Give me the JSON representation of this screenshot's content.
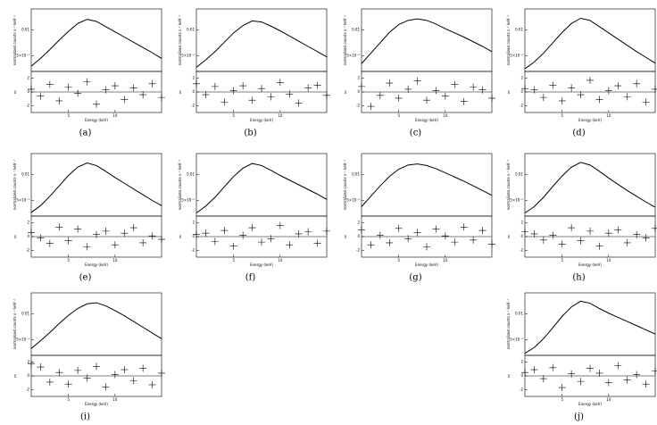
{
  "chart_data": [
    {
      "type": "line",
      "caption": "(a)",
      "xlabel": "Energy (keV)",
      "ylabel": "normalized counts s⁻¹ keV⁻¹",
      "y2label": "χ",
      "x": [
        1,
        2,
        3,
        4,
        5,
        6,
        7,
        8,
        9,
        10,
        11,
        12,
        13,
        14,
        15
      ],
      "xlim": [
        1,
        15
      ],
      "xticks": [
        5,
        10
      ],
      "ylim": [
        0.002,
        0.014
      ],
      "yticks": [
        {
          "value": 0.005,
          "label": "5×10⁻³"
        },
        0.01
      ],
      "y2lim": [
        -3,
        3
      ],
      "y2ticks": [
        -2,
        0,
        2
      ],
      "series": [
        {
          "name": "model",
          "color": "#000",
          "values": [
            0.003,
            0.0045,
            0.0062,
            0.008,
            0.0097,
            0.0112,
            0.012,
            0.0116,
            0.0106,
            0.0096,
            0.0086,
            0.0076,
            0.0066,
            0.0056,
            0.0045
          ]
        },
        {
          "name": "residuals",
          "color": "#000",
          "axis": "y2",
          "values": [
            0.4,
            -0.6,
            1.1,
            -1.3,
            0.7,
            -0.2,
            1.5,
            -1.8,
            0.3,
            0.9,
            -1.1,
            0.6,
            -0.4,
            1.2,
            -0.8
          ]
        }
      ]
    },
    {
      "type": "line",
      "caption": "(b)",
      "xlabel": "Energy (keV)",
      "ylabel": "normalized counts s⁻¹ keV⁻¹",
      "y2label": "χ",
      "x": [
        1,
        2,
        3,
        4,
        5,
        6,
        7,
        8,
        9,
        10,
        11,
        12,
        13,
        14,
        15
      ],
      "xlim": [
        1,
        15
      ],
      "xticks": [
        5,
        10
      ],
      "ylim": [
        0.002,
        0.014
      ],
      "yticks": [
        {
          "value": 0.005,
          "label": "5×10⁻³"
        },
        0.01
      ],
      "y2lim": [
        -3,
        3
      ],
      "y2ticks": [
        -2,
        0,
        2
      ],
      "series": [
        {
          "name": "model",
          "color": "#000",
          "values": [
            0.0028,
            0.0042,
            0.0058,
            0.0076,
            0.0094,
            0.0108,
            0.0117,
            0.0115,
            0.0107,
            0.0098,
            0.0088,
            0.0078,
            0.0068,
            0.0058,
            0.0048
          ]
        },
        {
          "name": "residuals",
          "color": "#000",
          "axis": "y2",
          "values": [
            1.2,
            -0.4,
            0.8,
            -1.5,
            0.2,
            0.9,
            -1.2,
            0.5,
            -0.7,
            1.4,
            -0.3,
            -1.6,
            0.6,
            1.0,
            -0.5
          ]
        }
      ]
    },
    {
      "type": "line",
      "caption": "(c)",
      "xlabel": "Energy (keV)",
      "ylabel": "normalized counts s⁻¹ keV⁻¹",
      "y2label": "χ",
      "x": [
        1,
        2,
        3,
        4,
        5,
        6,
        7,
        8,
        9,
        10,
        11,
        12,
        13,
        14,
        15
      ],
      "xlim": [
        1,
        15
      ],
      "xticks": [
        5,
        10
      ],
      "ylim": [
        0.002,
        0.014
      ],
      "yticks": [
        {
          "value": 0.005,
          "label": "5×10⁻³"
        },
        0.01
      ],
      "y2lim": [
        -3,
        3
      ],
      "y2ticks": [
        -2,
        0,
        2
      ],
      "series": [
        {
          "name": "model",
          "color": "#000",
          "values": [
            0.0035,
            0.0055,
            0.0075,
            0.0095,
            0.011,
            0.0118,
            0.0121,
            0.0118,
            0.0111,
            0.0102,
            0.0094,
            0.0086,
            0.0077,
            0.0068,
            0.0058
          ]
        },
        {
          "name": "residuals",
          "color": "#000",
          "axis": "y2",
          "values": [
            0.8,
            -2.1,
            -0.5,
            1.3,
            -0.9,
            0.4,
            1.6,
            -1.2,
            0.2,
            -0.6,
            1.1,
            -1.4,
            0.7,
            0.3,
            -0.9
          ]
        }
      ]
    },
    {
      "type": "line",
      "caption": "(d)",
      "xlabel": "Energy (keV)",
      "ylabel": "normalized counts s⁻¹ keV⁻¹",
      "y2label": "χ",
      "x": [
        1,
        2,
        3,
        4,
        5,
        6,
        7,
        8,
        9,
        10,
        11,
        12,
        13,
        14,
        15
      ],
      "xlim": [
        1,
        15
      ],
      "xticks": [
        5,
        10
      ],
      "ylim": [
        0.002,
        0.014
      ],
      "yticks": [
        {
          "value": 0.005,
          "label": "5×10⁻³"
        },
        0.01
      ],
      "y2lim": [
        -3,
        3
      ],
      "y2ticks": [
        -2,
        0,
        2
      ],
      "series": [
        {
          "name": "model",
          "color": "#000",
          "values": [
            0.0025,
            0.0038,
            0.0055,
            0.0075,
            0.0095,
            0.0112,
            0.0122,
            0.0118,
            0.0106,
            0.0094,
            0.0082,
            0.007,
            0.0058,
            0.0047,
            0.0036
          ]
        },
        {
          "name": "residuals",
          "color": "#000",
          "axis": "y2",
          "values": [
            0.5,
            0.3,
            -0.8,
            1.0,
            -1.3,
            0.6,
            -0.4,
            1.7,
            -1.1,
            0.2,
            0.9,
            -0.7,
            1.2,
            -1.5,
            0.4
          ]
        }
      ]
    },
    {
      "type": "line",
      "caption": "(e)",
      "xlabel": "Energy (keV)",
      "ylabel": "normalized counts s⁻¹ keV⁻¹",
      "y2label": "χ",
      "x": [
        1,
        2,
        3,
        4,
        5,
        6,
        7,
        8,
        9,
        10,
        11,
        12,
        13,
        14,
        15
      ],
      "xlim": [
        1,
        15
      ],
      "xticks": [
        5,
        10
      ],
      "ylim": [
        0.002,
        0.014
      ],
      "yticks": [
        {
          "value": 0.005,
          "label": "5×10⁻³"
        },
        0.01
      ],
      "y2lim": [
        -3,
        3
      ],
      "y2ticks": [
        -2,
        0,
        2
      ],
      "series": [
        {
          "name": "model",
          "color": "#000",
          "values": [
            0.0027,
            0.004,
            0.0058,
            0.0078,
            0.0098,
            0.0114,
            0.0122,
            0.0117,
            0.0106,
            0.0094,
            0.0083,
            0.0072,
            0.0061,
            0.005,
            0.004
          ]
        },
        {
          "name": "residuals",
          "color": "#000",
          "axis": "y2",
          "values": [
            0.6,
            -0.2,
            -1.0,
            1.4,
            -0.6,
            1.1,
            -1.5,
            0.3,
            0.8,
            -1.2,
            0.5,
            1.3,
            -0.9,
            0.1,
            -0.4
          ]
        }
      ]
    },
    {
      "type": "line",
      "caption": "(f)",
      "xlabel": "Energy (keV)",
      "ylabel": "normalized counts s⁻¹ keV⁻¹",
      "y2label": "χ",
      "x": [
        1,
        2,
        3,
        4,
        5,
        6,
        7,
        8,
        9,
        10,
        11,
        12,
        13,
        14,
        15
      ],
      "xlim": [
        1,
        15
      ],
      "xticks": [
        5,
        10
      ],
      "ylim": [
        0.002,
        0.014
      ],
      "yticks": [
        {
          "value": 0.005,
          "label": "5×10⁻³"
        },
        0.01
      ],
      "y2lim": [
        -3,
        3
      ],
      "y2ticks": [
        -2,
        0,
        2
      ],
      "series": [
        {
          "name": "model",
          "color": "#000",
          "values": [
            0.0026,
            0.0039,
            0.0056,
            0.0076,
            0.0096,
            0.0112,
            0.0121,
            0.0117,
            0.0108,
            0.0098,
            0.0089,
            0.008,
            0.0071,
            0.0062,
            0.0052
          ]
        },
        {
          "name": "residuals",
          "color": "#000",
          "axis": "y2",
          "values": [
            0.3,
            0.5,
            -0.7,
            0.9,
            -1.4,
            0.2,
            1.3,
            -0.8,
            -0.3,
            1.6,
            -1.2,
            0.4,
            0.7,
            -1.0,
            0.8
          ]
        }
      ]
    },
    {
      "type": "line",
      "caption": "(g)",
      "xlabel": "Energy (keV)",
      "ylabel": "normalized counts s⁻¹ keV⁻¹",
      "y2label": "χ",
      "x": [
        1,
        2,
        3,
        4,
        5,
        6,
        7,
        8,
        9,
        10,
        11,
        12,
        13,
        14,
        15
      ],
      "xlim": [
        1,
        15
      ],
      "xticks": [
        5,
        10
      ],
      "ylim": [
        0.002,
        0.014
      ],
      "yticks": [
        {
          "value": 0.005,
          "label": "5×10⁻³"
        },
        0.01
      ],
      "y2lim": [
        -3,
        3
      ],
      "y2ticks": [
        -2,
        0,
        2
      ],
      "series": [
        {
          "name": "model",
          "color": "#000",
          "values": [
            0.0038,
            0.0058,
            0.0078,
            0.0096,
            0.011,
            0.0118,
            0.012,
            0.0117,
            0.0111,
            0.0103,
            0.0095,
            0.0087,
            0.0078,
            0.0069,
            0.006
          ]
        },
        {
          "name": "residuals",
          "color": "#000",
          "axis": "y2",
          "values": [
            1.0,
            -1.2,
            0.2,
            -0.9,
            1.2,
            -0.3,
            0.6,
            -1.5,
            1.1,
            0.1,
            -0.8,
            1.4,
            -0.5,
            0.9,
            -1.1
          ]
        }
      ]
    },
    {
      "type": "line",
      "caption": "(h)",
      "xlabel": "Energy (keV)",
      "ylabel": "normalized counts s⁻¹ keV⁻¹",
      "y2label": "χ",
      "x": [
        1,
        2,
        3,
        4,
        5,
        6,
        7,
        8,
        9,
        10,
        11,
        12,
        13,
        14,
        15
      ],
      "xlim": [
        1,
        15
      ],
      "xticks": [
        5,
        10
      ],
      "ylim": [
        0.002,
        0.014
      ],
      "yticks": [
        {
          "value": 0.005,
          "label": "5×10⁻³"
        },
        0.01
      ],
      "y2lim": [
        -3,
        3
      ],
      "y2ticks": [
        -2,
        0,
        2
      ],
      "series": [
        {
          "name": "model",
          "color": "#000",
          "values": [
            0.0026,
            0.0038,
            0.0056,
            0.0077,
            0.0097,
            0.0114,
            0.0123,
            0.0118,
            0.0106,
            0.0093,
            0.0081,
            0.0069,
            0.0058,
            0.0047,
            0.0037
          ]
        },
        {
          "name": "residuals",
          "color": "#000",
          "axis": "y2",
          "values": [
            0.7,
            0.4,
            -0.5,
            0.2,
            -1.1,
            1.3,
            -0.6,
            0.8,
            -1.4,
            0.5,
            1.0,
            -0.9,
            0.3,
            -0.2,
            1.2
          ]
        }
      ]
    },
    {
      "type": "line",
      "caption": "(i)",
      "xlabel": "Energy (keV)",
      "ylabel": "normalized counts s⁻¹ keV⁻¹",
      "y2label": "χ",
      "x": [
        1,
        2,
        3,
        4,
        5,
        6,
        7,
        8,
        9,
        10,
        11,
        12,
        13,
        14,
        15
      ],
      "xlim": [
        1,
        15
      ],
      "xticks": [
        5,
        10
      ],
      "ylim": [
        0.002,
        0.014
      ],
      "yticks": [
        {
          "value": 0.005,
          "label": "5×10⁻³"
        },
        0.01
      ],
      "y2lim": [
        -3,
        3
      ],
      "y2ticks": [
        -2,
        0,
        2
      ],
      "series": [
        {
          "name": "model",
          "color": "#000",
          "values": [
            0.0033,
            0.0048,
            0.0064,
            0.0081,
            0.0097,
            0.011,
            0.0119,
            0.0121,
            0.0115,
            0.0106,
            0.0096,
            0.0085,
            0.0074,
            0.0063,
            0.0052
          ]
        },
        {
          "name": "residuals",
          "color": "#000",
          "axis": "y2",
          "values": [
            1.8,
            1.3,
            -0.9,
            0.5,
            -1.2,
            0.8,
            -0.3,
            1.4,
            -1.6,
            0.2,
            0.9,
            -0.7,
            1.1,
            -1.3,
            0.4
          ]
        }
      ]
    },
    {
      "type": "line",
      "caption": "(j)",
      "xlabel": "Energy (keV)",
      "ylabel": "normalized counts s⁻¹ keV⁻¹",
      "y2label": "χ",
      "x": [
        1,
        2,
        3,
        4,
        5,
        6,
        7,
        8,
        9,
        10,
        11,
        12,
        13,
        14,
        15
      ],
      "xlim": [
        1,
        15
      ],
      "xticks": [
        5,
        10
      ],
      "ylim": [
        0.002,
        0.014
      ],
      "yticks": [
        {
          "value": 0.005,
          "label": "5×10⁻³"
        },
        0.01
      ],
      "y2lim": [
        -3,
        3
      ],
      "y2ticks": [
        -2,
        0,
        2
      ],
      "series": [
        {
          "name": "model",
          "color": "#000",
          "values": [
            0.0024,
            0.0035,
            0.0052,
            0.0073,
            0.0095,
            0.0113,
            0.0124,
            0.012,
            0.011,
            0.0101,
            0.0093,
            0.0085,
            0.0077,
            0.0069,
            0.0061
          ]
        },
        {
          "name": "residuals",
          "color": "#000",
          "axis": "y2",
          "values": [
            0.5,
            0.9,
            -0.4,
            1.2,
            -1.7,
            0.3,
            -0.8,
            1.1,
            0.4,
            -1.0,
            1.5,
            -0.6,
            0.2,
            -1.2,
            0.7
          ]
        }
      ]
    }
  ]
}
